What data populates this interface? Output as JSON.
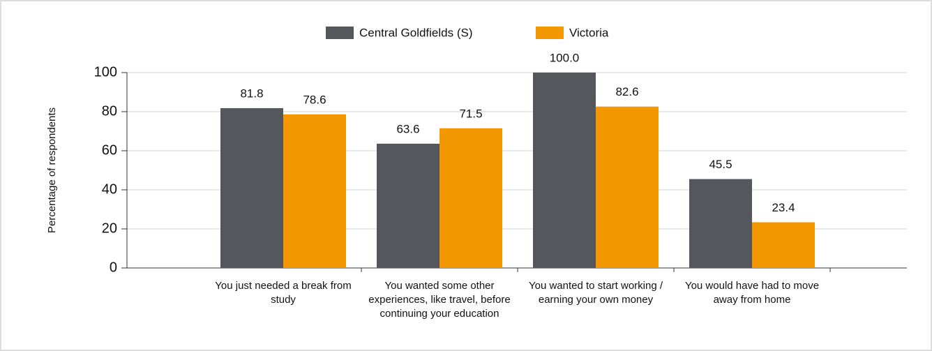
{
  "chart_data": {
    "type": "bar",
    "y_axis_label": "Percentage of respondents",
    "categories": [
      "You just needed a break from study",
      "You wanted some other experiences, like travel, before continuing your education",
      "You wanted to start working / earning your own money",
      "You would have had to move away from home"
    ],
    "series": [
      {
        "name": "Central Goldfields (S)",
        "color": "#54575b",
        "values": [
          81.8,
          63.6,
          100.0,
          45.5
        ],
        "value_labels": [
          "81.8",
          "63.6",
          "100.0",
          "45.5"
        ]
      },
      {
        "name": "Victoria",
        "color": "#f39800",
        "values": [
          78.6,
          71.5,
          82.6,
          23.4
        ],
        "value_labels": [
          "78.6",
          "71.5",
          "82.6",
          "23.4"
        ]
      }
    ],
    "ylim": [
      0,
      100
    ],
    "yticks": [
      0,
      20,
      40,
      60,
      80,
      100
    ],
    "grid": true,
    "legend": "top"
  }
}
